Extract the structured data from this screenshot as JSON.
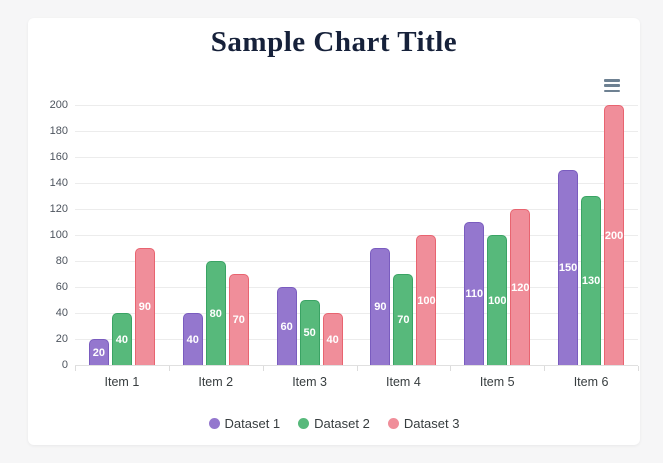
{
  "page": {
    "title": "Sample Chart Title"
  },
  "toolbar": {
    "menu_icon": "hamburger-menu"
  },
  "chart_data": {
    "type": "bar",
    "title": "Sample Chart Title",
    "categories": [
      "Item 1",
      "Item 2",
      "Item 3",
      "Item 4",
      "Item 5",
      "Item 6"
    ],
    "series": [
      {
        "name": "Dataset 1",
        "color": "#9477CE",
        "border_color": "#7a5cbf",
        "values": [
          20,
          40,
          60,
          90,
          110,
          150
        ]
      },
      {
        "name": "Dataset 2",
        "color": "#57B97B",
        "border_color": "#3aa364",
        "values": [
          40,
          80,
          50,
          70,
          100,
          130
        ]
      },
      {
        "name": "Dataset 3",
        "color": "#F08E9A",
        "border_color": "#e86470",
        "values": [
          90,
          70,
          40,
          100,
          120,
          200
        ]
      }
    ],
    "ylim": [
      0,
      200
    ],
    "ytick_step": 20,
    "grid": true,
    "legend_position": "bottom",
    "value_labels": "inside-center",
    "colors": {
      "grid": "#ececec",
      "axis_text": "#4d545e",
      "title_text": "#16213a",
      "menu_icon": "#6e8192"
    }
  }
}
